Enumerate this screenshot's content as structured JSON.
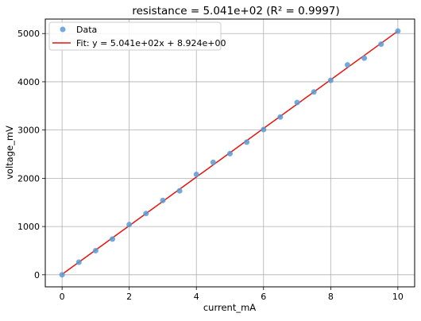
{
  "chart_data": {
    "type": "scatter",
    "title": "resistance = 5.041e+02 (R² = 0.9997)",
    "xlabel": "current_mA",
    "ylabel": "voltage_mV",
    "xlim": [
      -0.5,
      10.5
    ],
    "ylim": [
      -250,
      5300
    ],
    "xticks": [
      0,
      2,
      4,
      6,
      8,
      10
    ],
    "yticks": [
      0,
      1000,
      2000,
      3000,
      4000,
      5000
    ],
    "grid": true,
    "legend_position": "top-left",
    "series": [
      {
        "name": "Data",
        "kind": "scatter",
        "color": "#5b9bd5",
        "x": [
          0,
          0.5,
          1,
          1.5,
          2,
          2.5,
          3,
          3.5,
          4,
          4.5,
          5,
          5.5,
          6,
          6.5,
          7,
          7.5,
          8,
          8.5,
          9,
          9.5,
          10
        ],
        "y": [
          0,
          260,
          500,
          740,
          1040,
          1270,
          1540,
          1740,
          2080,
          2330,
          2510,
          2750,
          3010,
          3270,
          3570,
          3790,
          4030,
          4350,
          4490,
          4780,
          5050
        ]
      },
      {
        "name": "Fit: y = 5.041e+02x + 8.924e+00",
        "kind": "line",
        "color": "#e8140c",
        "slope": 504.1,
        "intercept": 8.924,
        "x": [
          0,
          10
        ]
      }
    ]
  }
}
